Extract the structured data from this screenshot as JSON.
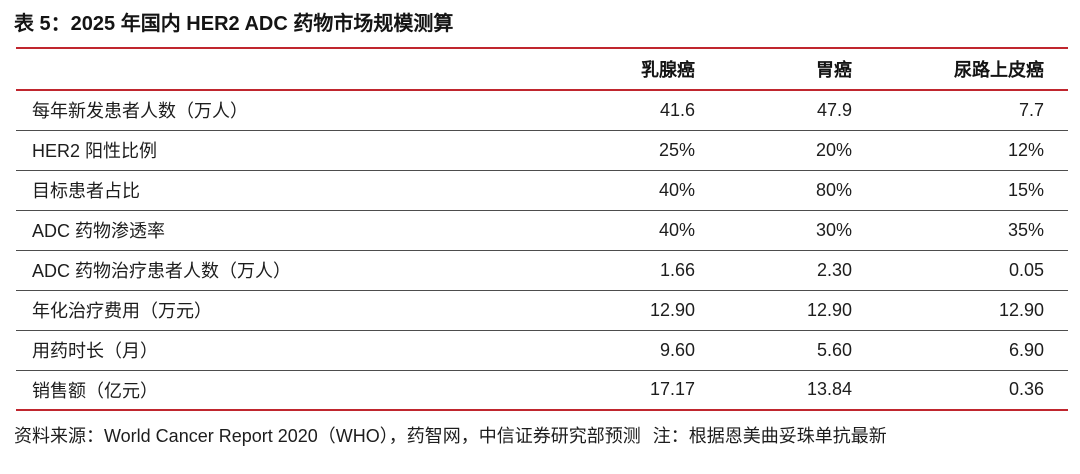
{
  "title": "表 5：2025 年国内 HER2 ADC 药物市场规模测算",
  "table": {
    "columns": [
      "",
      "乳腺癌",
      "胃癌",
      "尿路上皮癌"
    ],
    "rows": [
      {
        "label": "每年新发患者人数（万人）",
        "values": [
          "41.6",
          "47.9",
          "7.7"
        ]
      },
      {
        "label": "HER2 阳性比例",
        "values": [
          "25%",
          "20%",
          "12%"
        ]
      },
      {
        "label": "目标患者占比",
        "values": [
          "40%",
          "80%",
          "15%"
        ]
      },
      {
        "label": "ADC 药物渗透率",
        "values": [
          "40%",
          "30%",
          "35%"
        ]
      },
      {
        "label": "ADC 药物治疗患者人数（万人）",
        "values": [
          "1.66",
          "2.30",
          "0.05"
        ]
      },
      {
        "label": "年化治疗费用（万元）",
        "values": [
          "12.90",
          "12.90",
          "12.90"
        ]
      },
      {
        "label": "用药时长（月）",
        "values": [
          "9.60",
          "5.60",
          "6.90"
        ]
      },
      {
        "label": "销售额（亿元）",
        "values": [
          "17.17",
          "13.84",
          "0.36"
        ]
      }
    ]
  },
  "footer": {
    "source": "资料来源：World Cancer Report 2020（WHO），药智网，中信证券研究部预测",
    "note": "注：根据恩美曲妥珠单抗最新"
  },
  "colors": {
    "accent_red": "#c0262e",
    "separator_gray": "#4d4d4d",
    "text": "#1d1d1d"
  }
}
